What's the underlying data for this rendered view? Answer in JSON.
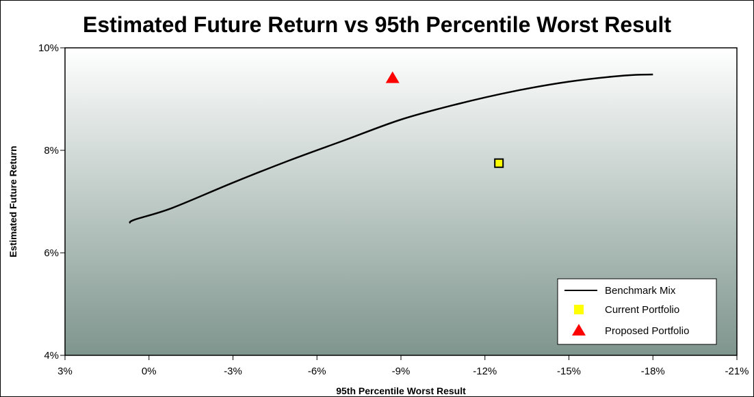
{
  "chart_data": {
    "type": "scatter",
    "title": "Estimated Future Return vs 95th Percentile Worst Result",
    "xlabel": "95th Percentile Worst Result",
    "ylabel": "Estimated Future Return",
    "x_axis_direction": "reversed",
    "xlim": [
      3,
      -21
    ],
    "ylim": [
      4,
      10
    ],
    "x_ticks": [
      3,
      0,
      -3,
      -6,
      -9,
      -12,
      -15,
      -18,
      -21
    ],
    "x_tick_labels": [
      "3%",
      "0%",
      "-3%",
      "-6%",
      "-9%",
      "-12%",
      "-15%",
      "-18%",
      "-21%"
    ],
    "y_ticks": [
      4,
      6,
      8,
      10
    ],
    "y_tick_labels": [
      "4%",
      "6%",
      "8%",
      "10%"
    ],
    "grid": false,
    "legend_position": "bottom-right",
    "background": "vertical gradient white to grey-green",
    "series": [
      {
        "name": "Benchmark Mix",
        "type": "line",
        "color": "#000000",
        "x": [
          0.7,
          0.5,
          -0.8,
          -3.0,
          -5.0,
          -7.0,
          -9.0,
          -11.0,
          -13.0,
          -15.0,
          -17.0,
          -18.0
        ],
        "y": [
          6.58,
          6.65,
          6.87,
          7.37,
          7.8,
          8.2,
          8.6,
          8.9,
          9.15,
          9.34,
          9.46,
          9.48
        ]
      },
      {
        "name": "Current Portfolio",
        "type": "scatter",
        "marker": "square",
        "color": "#ffff00",
        "x": [
          -12.5
        ],
        "y": [
          7.75
        ]
      },
      {
        "name": "Proposed Portfolio",
        "type": "scatter",
        "marker": "triangle",
        "color": "#ff0000",
        "x": [
          -8.7
        ],
        "y": [
          9.42
        ]
      }
    ]
  }
}
